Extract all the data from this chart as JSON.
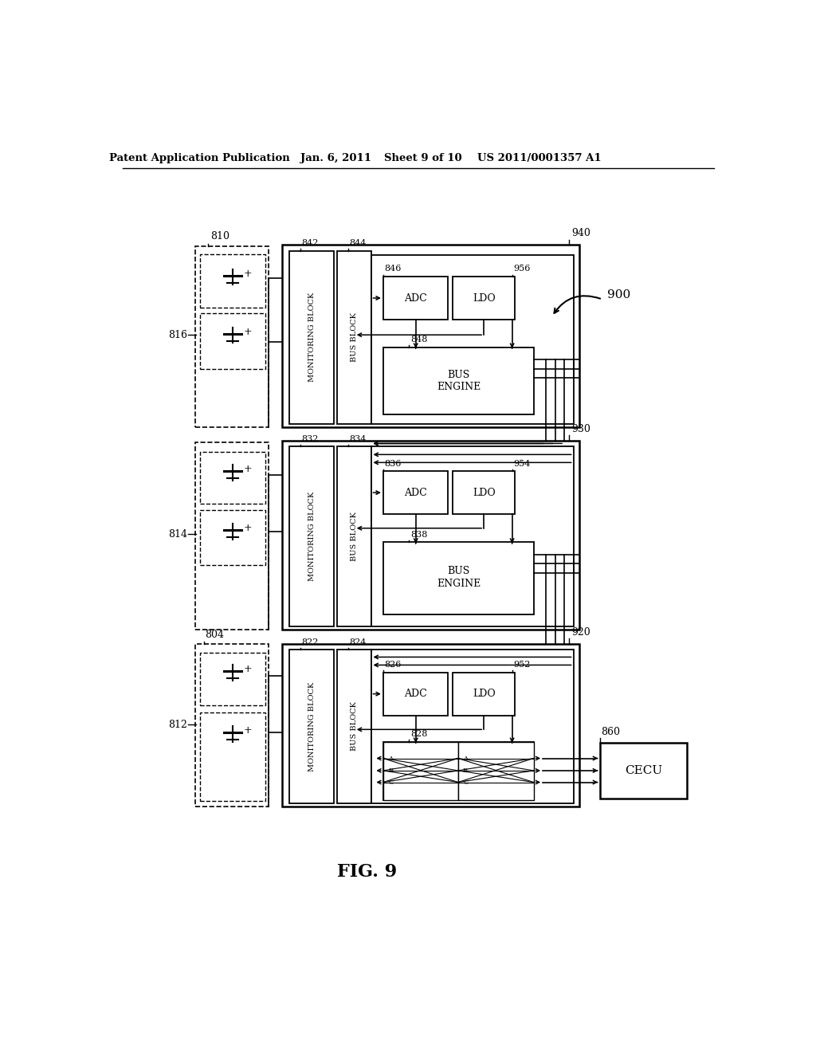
{
  "bg_color": "#ffffff",
  "line_color": "#000000",
  "header_text": "Patent Application Publication",
  "header_date": "Jan. 6, 2011",
  "header_sheet": "Sheet 9 of 10",
  "header_patent": "US 2011/0001357 A1",
  "fig_label": "FIG. 9",
  "label_900": "900",
  "label_810": "810",
  "label_816": "816",
  "label_814": "814",
  "label_812": "812",
  "label_804": "804",
  "label_940": "940",
  "label_930": "930",
  "label_920": "920",
  "label_842": "842",
  "label_844": "844",
  "label_832": "832",
  "label_834": "834",
  "label_822": "822",
  "label_824": "824",
  "label_846": "846",
  "label_956": "956",
  "label_848": "848",
  "label_836": "836",
  "label_954": "954",
  "label_838": "838",
  "label_826": "826",
  "label_952": "952",
  "label_828": "828",
  "label_860": "860",
  "text_monitoring_block": "MONITORING BLOCK",
  "text_bus_block": "BUS BLOCK",
  "text_adc": "ADC",
  "text_ldo": "LDO",
  "text_bus_engine": [
    "BUS",
    "ENGINE"
  ],
  "text_cecu": "CECU"
}
